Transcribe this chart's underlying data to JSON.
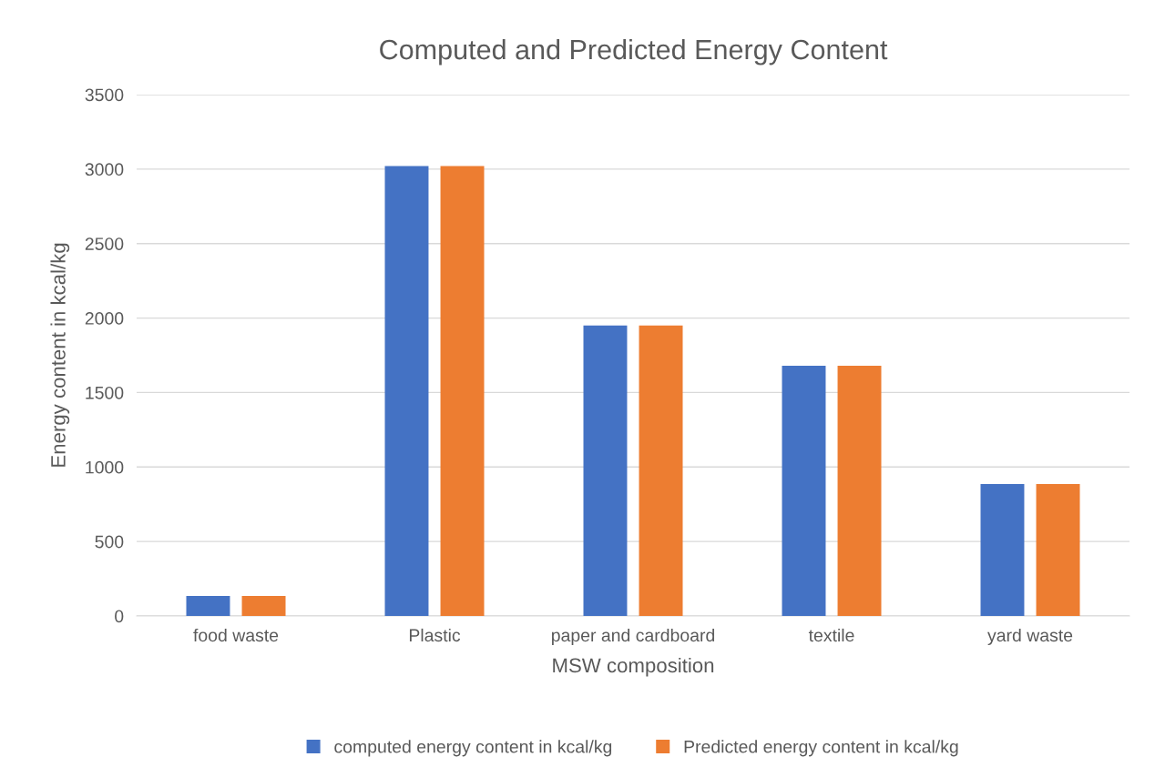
{
  "chart_data": {
    "type": "bar",
    "title": "Computed and Predicted Energy Content",
    "xlabel": "MSW composition",
    "ylabel": "Energy content in kcal/kg",
    "categories": [
      "food waste",
      "Plastic",
      "paper and cardboard",
      "textile",
      "yard waste"
    ],
    "series": [
      {
        "name": "computed energy content in kcal/kg",
        "color": "#4472c4",
        "values": [
          135,
          3020,
          1950,
          1680,
          885
        ]
      },
      {
        "name": "Predicted energy content in kcal/kg",
        "color": "#ed7d31",
        "values": [
          135,
          3020,
          1950,
          1680,
          885
        ]
      }
    ],
    "ylim": [
      0,
      3500
    ],
    "yticks": [
      0,
      500,
      1000,
      1500,
      2000,
      2500,
      3000,
      3500
    ],
    "grid": "y",
    "legend": "bottom"
  }
}
